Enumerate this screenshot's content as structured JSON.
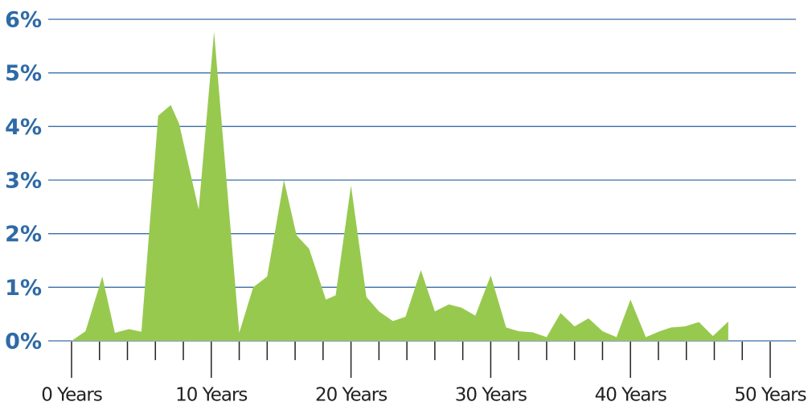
{
  "chart_data": {
    "type": "area",
    "color": "#97c94f",
    "grid": true,
    "grid_color": "#3a6ea5",
    "xlim": [
      0,
      50
    ],
    "ylim": [
      0,
      6
    ],
    "yticks": [
      {
        "value": 0,
        "label": "0%"
      },
      {
        "value": 1,
        "label": "1%"
      },
      {
        "value": 2,
        "label": "2%"
      },
      {
        "value": 3,
        "label": "3%"
      },
      {
        "value": 4,
        "label": "4%"
      },
      {
        "value": 5,
        "label": "5%"
      },
      {
        "value": 6,
        "label": "6%"
      }
    ],
    "xticks": [
      {
        "value": 0,
        "label": "0 Years"
      },
      {
        "value": 10,
        "label": "10 Years"
      },
      {
        "value": 20,
        "label": "20 Years"
      },
      {
        "value": 30,
        "label": "30 Years"
      },
      {
        "value": 40,
        "label": "40 Years"
      },
      {
        "value": 50,
        "label": "50 Years"
      }
    ],
    "xminorticks": [
      2,
      4,
      6,
      8,
      12,
      14,
      16,
      18,
      22,
      24,
      26,
      28,
      32,
      34,
      36,
      38,
      42,
      44,
      46,
      48
    ],
    "x": [
      0,
      1,
      2.2,
      3.1,
      4.1,
      5,
      6.2,
      7.1,
      7.7,
      9.1,
      10.2,
      12,
      13,
      14,
      15.2,
      16.1,
      17,
      17.5,
      18.2,
      18.9,
      20,
      21.1,
      22,
      23,
      23.9,
      25,
      26,
      27,
      27.9,
      28.9,
      30,
      31.1,
      32,
      33,
      34,
      35,
      36,
      37,
      38,
      39,
      40,
      41.1,
      42.1,
      42.9,
      43.9,
      44.9,
      45.9,
      47
    ],
    "values": [
      0,
      0.18,
      1.2,
      0.15,
      0.22,
      0.17,
      4.2,
      4.4,
      4.05,
      2.45,
      5.77,
      0.15,
      1.0,
      1.2,
      3.0,
      1.97,
      1.72,
      1.33,
      0.77,
      0.85,
      2.9,
      0.82,
      0.55,
      0.37,
      0.45,
      1.32,
      0.55,
      0.68,
      0.62,
      0.47,
      1.22,
      0.25,
      0.18,
      0.16,
      0.07,
      0.52,
      0.27,
      0.42,
      0.18,
      0.07,
      0.77,
      0.07,
      0.18,
      0.25,
      0.27,
      0.35,
      0.09,
      0.36
    ]
  }
}
